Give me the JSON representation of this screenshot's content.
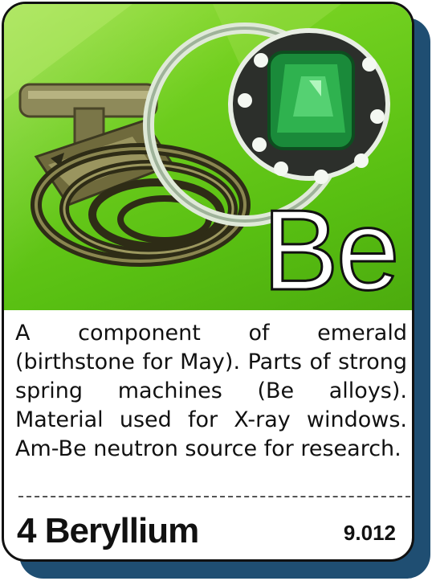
{
  "element": {
    "symbol": "Be",
    "number_name": "4 Beryllium",
    "atomic_mass": "9.012",
    "description": "A component of emerald (birthstone for May). Parts of strong spring machines (Be alloys). Material used for X-ray windows.  Am-Be neutron source for research."
  },
  "colors": {
    "background_green": "#6fce1e",
    "shadow_blue": "#1f4e72",
    "emerald": "#1a8a3a"
  },
  "icons": [
    "spring-key-image",
    "emerald-ring-image"
  ]
}
